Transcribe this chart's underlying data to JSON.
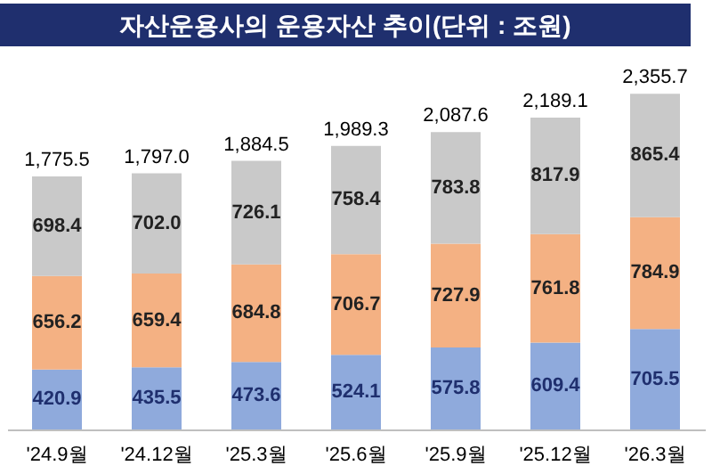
{
  "chart_data": {
    "type": "bar",
    "title": "자산운용사의 운용자산 추이(단위 : 조원)",
    "stacked": true,
    "categories": [
      "'24.9월",
      "'24.12월",
      "'25.3월",
      "'25.6월",
      "'25.9월",
      "'25.12월",
      "'26.3월"
    ],
    "series": [
      {
        "color": "#8faadc",
        "values": [
          420.9,
          435.5,
          473.6,
          524.1,
          575.8,
          609.4,
          705.5
        ],
        "value_labels": [
          "420.9",
          "435.5",
          "473.6",
          "524.1",
          "575.8",
          "609.4",
          "705.5"
        ]
      },
      {
        "color": "#f4b183",
        "values": [
          656.2,
          659.4,
          684.8,
          706.7,
          727.9,
          761.8,
          784.9
        ],
        "value_labels": [
          "656.2",
          "659.4",
          "684.8",
          "706.7",
          "727.9",
          "761.8",
          "784.9"
        ]
      },
      {
        "color": "#c9c9c9",
        "values": [
          698.4,
          702.0,
          726.1,
          758.4,
          783.8,
          817.9,
          865.4
        ],
        "value_labels": [
          "698.4",
          "702.0",
          "726.1",
          "758.4",
          "783.8",
          "817.9",
          "865.4"
        ]
      }
    ],
    "totals": [
      "1,775.5",
      "1,797.0",
      "1,884.5",
      "1,989.3",
      "2,087.6",
      "2,189.1",
      "2,355.7"
    ]
  }
}
